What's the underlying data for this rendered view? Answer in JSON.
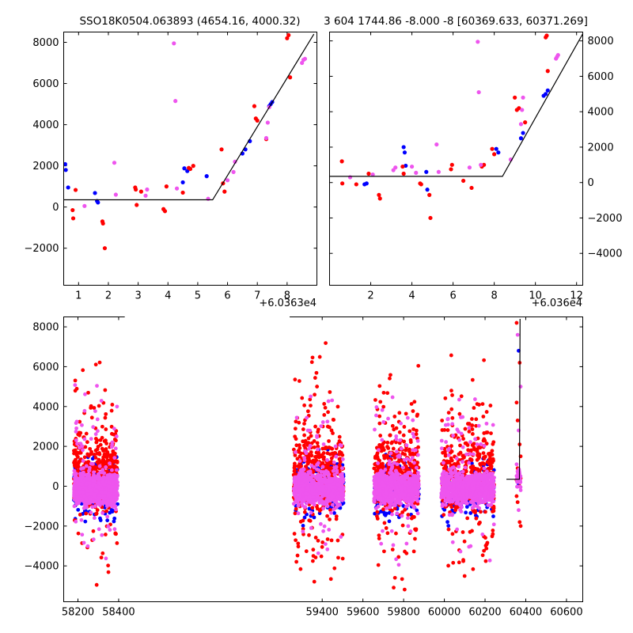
{
  "chart_data": [
    {
      "type": "scatter",
      "title": "SSO18K0504.063893 (4654.16, 4000.32)",
      "xlim": [
        0.5,
        9.0
      ],
      "ylim": [
        -3800,
        8500
      ],
      "x_ticks": [
        1,
        2,
        3,
        4,
        5,
        6,
        7,
        8
      ],
      "y_ticks": [
        -2000,
        0,
        2000,
        4000,
        6000,
        8000
      ],
      "x_offset_label": "+6.0363e4",
      "y_tick_side": "left",
      "series": [
        {
          "color": "#0000ff",
          "points": [
            [
              0.55,
              2080
            ],
            [
              0.57,
              1800
            ],
            [
              0.65,
              950
            ],
            [
              1.55,
              680
            ],
            [
              1.62,
              290
            ],
            [
              1.65,
              220
            ],
            [
              4.5,
              1200
            ],
            [
              4.55,
              1880
            ],
            [
              4.65,
              1750
            ],
            [
              5.3,
              1500
            ],
            [
              6.5,
              2600
            ],
            [
              6.6,
              2800
            ],
            [
              6.75,
              3200
            ],
            [
              7.4,
              4900
            ],
            [
              7.45,
              5000
            ],
            [
              7.5,
              5100
            ]
          ]
        },
        {
          "color": "#ff0000",
          "points": [
            [
              0.8,
              -150
            ],
            [
              0.82,
              -550
            ],
            [
              0.9,
              830
            ],
            [
              1.8,
              -700
            ],
            [
              1.82,
              -800
            ],
            [
              1.88,
              -2000
            ],
            [
              2.9,
              950
            ],
            [
              2.92,
              850
            ],
            [
              2.95,
              100
            ],
            [
              3.1,
              750
            ],
            [
              3.85,
              -100
            ],
            [
              3.9,
              -200
            ],
            [
              3.95,
              1000
            ],
            [
              4.5,
              700
            ],
            [
              4.7,
              1900
            ],
            [
              4.75,
              1850
            ],
            [
              4.85,
              2000
            ],
            [
              5.8,
              2800
            ],
            [
              5.85,
              1150
            ],
            [
              5.9,
              750
            ],
            [
              6.9,
              4900
            ],
            [
              6.95,
              4300
            ],
            [
              7.0,
              4200
            ],
            [
              7.3,
              3300
            ],
            [
              8.0,
              8200
            ],
            [
              8.05,
              8350
            ],
            [
              8.1,
              6300
            ]
          ]
        },
        {
          "color": "#ee55ee",
          "points": [
            [
              1.2,
              50
            ],
            [
              2.2,
              2150
            ],
            [
              2.25,
              600
            ],
            [
              3.25,
              550
            ],
            [
              3.3,
              850
            ],
            [
              4.2,
              7950
            ],
            [
              4.25,
              5150
            ],
            [
              4.3,
              900
            ],
            [
              5.35,
              400
            ],
            [
              6.0,
              1300
            ],
            [
              6.2,
              1700
            ],
            [
              6.25,
              2200
            ],
            [
              7.3,
              3350
            ],
            [
              7.35,
              4100
            ],
            [
              7.4,
              4850
            ],
            [
              8.5,
              7000
            ],
            [
              8.55,
              7150
            ],
            [
              8.6,
              7200
            ]
          ]
        }
      ],
      "model_line": [
        [
          0.5,
          350
        ],
        [
          5.5,
          350
        ],
        [
          8.9,
          8400
        ]
      ]
    },
    {
      "type": "scatter",
      "title": "3 604 1744.86 -8.000 -8 [60369.633, 60371.269]",
      "xlim": [
        0.0,
        12.3
      ],
      "ylim": [
        -5800,
        8500
      ],
      "x_ticks": [
        2,
        4,
        6,
        8,
        10,
        12
      ],
      "y_ticks": [
        -4000,
        -2000,
        0,
        2000,
        4000,
        6000,
        8000
      ],
      "x_offset_label": "+6.036e4",
      "y_tick_side": "right",
      "series": [
        {
          "color": "#0000ff",
          "points": [
            [
              1.7,
              -100
            ],
            [
              1.8,
              -50
            ],
            [
              3.6,
              2000
            ],
            [
              3.65,
              1700
            ],
            [
              3.7,
              950
            ],
            [
              4.7,
              600
            ],
            [
              4.75,
              -400
            ],
            [
              8.1,
              1900
            ],
            [
              8.2,
              1700
            ],
            [
              9.3,
              2500
            ],
            [
              9.4,
              2800
            ],
            [
              10.4,
              4900
            ],
            [
              10.5,
              5000
            ],
            [
              10.6,
              5200
            ]
          ]
        },
        {
          "color": "#ff0000",
          "points": [
            [
              0.6,
              1200
            ],
            [
              0.62,
              -50
            ],
            [
              1.3,
              -100
            ],
            [
              1.9,
              500
            ],
            [
              2.4,
              -700
            ],
            [
              2.45,
              -900
            ],
            [
              3.55,
              900
            ],
            [
              3.6,
              500
            ],
            [
              4.4,
              -50
            ],
            [
              4.45,
              -100
            ],
            [
              4.85,
              -700
            ],
            [
              4.9,
              -2000
            ],
            [
              5.9,
              750
            ],
            [
              5.95,
              1000
            ],
            [
              6.5,
              100
            ],
            [
              6.9,
              -300
            ],
            [
              7.4,
              900
            ],
            [
              7.5,
              1000
            ],
            [
              7.9,
              1900
            ],
            [
              8.0,
              1600
            ],
            [
              9.0,
              4800
            ],
            [
              9.1,
              4100
            ],
            [
              9.2,
              4200
            ],
            [
              9.5,
              3400
            ],
            [
              10.5,
              8200
            ],
            [
              10.55,
              8300
            ],
            [
              10.6,
              6300
            ]
          ]
        },
        {
          "color": "#ee55ee",
          "points": [
            [
              1.0,
              300
            ],
            [
              2.1,
              450
            ],
            [
              3.1,
              700
            ],
            [
              3.2,
              850
            ],
            [
              4.0,
              900
            ],
            [
              4.2,
              550
            ],
            [
              5.2,
              2150
            ],
            [
              5.3,
              600
            ],
            [
              6.8,
              850
            ],
            [
              7.2,
              7950
            ],
            [
              7.25,
              5100
            ],
            [
              7.35,
              1000
            ],
            [
              8.8,
              1300
            ],
            [
              9.3,
              3300
            ],
            [
              9.35,
              4100
            ],
            [
              9.4,
              4800
            ],
            [
              11.0,
              7000
            ],
            [
              11.05,
              7100
            ],
            [
              11.1,
              7200
            ]
          ]
        }
      ],
      "model_line": [
        [
          0.0,
          350
        ],
        [
          8.4,
          350
        ],
        [
          12.3,
          8400
        ]
      ]
    },
    {
      "type": "scatter",
      "title": "",
      "xlim": [
        58130,
        60680
      ],
      "ylim": [
        -5800,
        8500
      ],
      "x_ticks": [
        58200,
        58400,
        59400,
        59600,
        59800,
        60000,
        60200,
        60400,
        60600
      ],
      "y_ticks": [
        -4000,
        -2000,
        0,
        2000,
        4000,
        6000,
        8000
      ],
      "y_tick_side": "left",
      "x_gap": [
        58430,
        59240
      ],
      "clusters": [
        {
          "x_range": [
            58180,
            58395
          ],
          "base_halfwidth": 700
        },
        {
          "x_range": [
            59260,
            59505
          ],
          "base_halfwidth": 900
        },
        {
          "x_range": [
            59655,
            59875
          ],
          "base_halfwidth": 900
        },
        {
          "x_range": [
            59985,
            60245
          ],
          "base_halfwidth": 900
        }
      ],
      "late_points_x_range": [
        60355,
        60375
      ],
      "series_colors": [
        "#0000ff",
        "#ff0000",
        "#ee55ee"
      ],
      "model_line": [
        [
          60305,
          350
        ],
        [
          60369,
          350
        ],
        [
          60372,
          8400
        ]
      ]
    }
  ]
}
